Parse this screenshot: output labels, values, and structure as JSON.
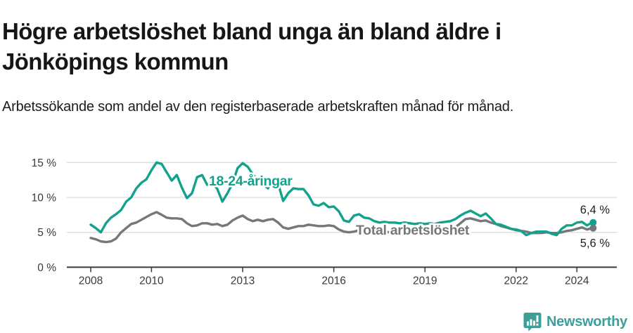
{
  "header": {
    "title": "Högre arbetslöshet bland unga än bland äldre i Jönköpings kommun",
    "subtitle": "Arbetssökande som andel av den registerbaserade arbetskraften månad för månad."
  },
  "chart_data": {
    "type": "line",
    "x_start": 2008.0,
    "x_step_years": 0.16667,
    "x_end": 2024.5,
    "x_tick_years": [
      2008,
      2010,
      2013,
      2016,
      2019,
      2022,
      2024
    ],
    "x_tick_labels": [
      "2008",
      "2010",
      "2013",
      "2016",
      "2019",
      "2022",
      "2024"
    ],
    "y_ticks": [
      0,
      5,
      10,
      15
    ],
    "y_tick_labels": [
      "0 %",
      "5 %",
      "10 %",
      "15 %"
    ],
    "ylim": [
      0,
      15.6
    ],
    "grid": "horizontal",
    "legend_position": "inline-labels",
    "series": [
      {
        "name": "18-24-aringar",
        "label": "18-24-åringar",
        "color": "#12a28c",
        "end_label": "6,4 %",
        "end_value": 6.4,
        "values": [
          6.1,
          5.6,
          5.0,
          6.3,
          7.1,
          7.6,
          8.2,
          9.4,
          10.0,
          11.3,
          12.1,
          12.6,
          13.9,
          15.0,
          14.8,
          13.6,
          12.4,
          13.2,
          11.4,
          9.9,
          10.6,
          12.9,
          13.2,
          11.8,
          12.2,
          11.2,
          9.4,
          10.6,
          12.0,
          14.2,
          14.9,
          14.4,
          13.3,
          12.4,
          11.9,
          11.3,
          12.6,
          12.0,
          9.5,
          10.6,
          11.3,
          11.2,
          11.2,
          10.3,
          9.0,
          8.8,
          9.2,
          8.6,
          8.7,
          8.0,
          6.7,
          6.5,
          7.4,
          7.6,
          7.1,
          7.0,
          6.6,
          6.4,
          6.5,
          6.4,
          6.4,
          6.3,
          6.4,
          6.3,
          6.2,
          6.3,
          6.2,
          6.3,
          6.2,
          6.4,
          6.5,
          6.6,
          6.9,
          7.4,
          7.8,
          8.1,
          7.7,
          7.3,
          7.7,
          7.0,
          6.2,
          6.1,
          5.8,
          5.5,
          5.4,
          5.2,
          4.6,
          4.9,
          5.1,
          5.1,
          5.1,
          4.8,
          4.6,
          5.5,
          6.0,
          6.0,
          6.4,
          6.5,
          6.0,
          6.4
        ]
      },
      {
        "name": "total-arbetsloshet",
        "label": "Total arbetslöshet",
        "color": "#76777a",
        "end_label": "5,6 %",
        "end_value": 5.6,
        "values": [
          4.2,
          4.0,
          3.7,
          3.6,
          3.7,
          4.1,
          5.0,
          5.6,
          6.2,
          6.4,
          6.8,
          7.2,
          7.6,
          7.9,
          7.5,
          7.1,
          7.0,
          7.0,
          6.9,
          6.3,
          5.9,
          6.0,
          6.3,
          6.3,
          6.1,
          6.2,
          5.9,
          6.1,
          6.7,
          7.1,
          7.4,
          6.9,
          6.6,
          6.8,
          6.6,
          6.8,
          6.9,
          6.4,
          5.7,
          5.5,
          5.7,
          5.9,
          5.9,
          6.1,
          6.0,
          5.9,
          5.9,
          6.0,
          5.9,
          5.4,
          5.1,
          5.0,
          5.1,
          5.3,
          5.2,
          5.1,
          5.0,
          5.0,
          5.1,
          5.0,
          5.0,
          4.9,
          5.0,
          5.0,
          4.9,
          5.0,
          5.0,
          4.9,
          5.0,
          5.1,
          5.2,
          5.4,
          5.7,
          6.3,
          6.9,
          7.0,
          6.8,
          6.6,
          6.7,
          6.4,
          6.2,
          5.9,
          5.7,
          5.5,
          5.3,
          5.2,
          5.1,
          4.9,
          4.9,
          4.9,
          5.0,
          4.9,
          4.9,
          5.0,
          5.2,
          5.3,
          5.5,
          5.7,
          5.4,
          5.6
        ]
      }
    ],
    "colors": {
      "grid": "#dcdcdc",
      "axis": "#3b3b3b",
      "tick_text": "#3a3a3a",
      "end_label_text": "#1f1f1f"
    }
  },
  "footer": {
    "logo_text": "Newsworthy",
    "logo_color": "#3d9f9b"
  }
}
